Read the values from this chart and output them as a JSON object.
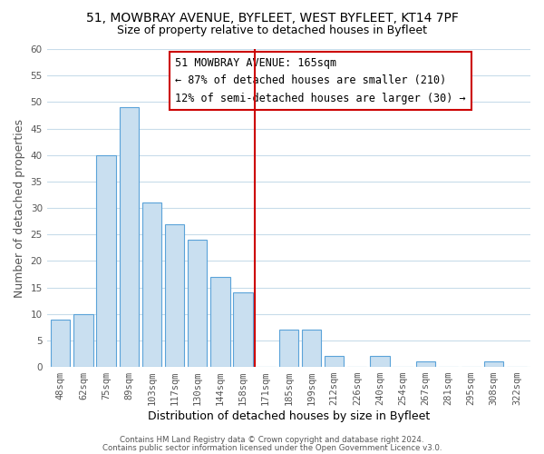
{
  "title": "51, MOWBRAY AVENUE, BYFLEET, WEST BYFLEET, KT14 7PF",
  "subtitle": "Size of property relative to detached houses in Byfleet",
  "xlabel": "Distribution of detached houses by size in Byfleet",
  "ylabel": "Number of detached properties",
  "bar_labels": [
    "48sqm",
    "62sqm",
    "75sqm",
    "89sqm",
    "103sqm",
    "117sqm",
    "130sqm",
    "144sqm",
    "158sqm",
    "171sqm",
    "185sqm",
    "199sqm",
    "212sqm",
    "226sqm",
    "240sqm",
    "254sqm",
    "267sqm",
    "281sqm",
    "295sqm",
    "308sqm",
    "322sqm"
  ],
  "bar_values": [
    9,
    10,
    40,
    49,
    31,
    27,
    24,
    17,
    14,
    0,
    7,
    7,
    2,
    0,
    2,
    0,
    1,
    0,
    0,
    1,
    0
  ],
  "bar_color": "#c9dff0",
  "bar_edge_color": "#5ba3d9",
  "vline_x": 8.5,
  "vline_color": "#cc0000",
  "ylim": [
    0,
    60
  ],
  "yticks": [
    0,
    5,
    10,
    15,
    20,
    25,
    30,
    35,
    40,
    45,
    50,
    55,
    60
  ],
  "annotation_title": "51 MOWBRAY AVENUE: 165sqm",
  "annotation_line1": "← 87% of detached houses are smaller (210)",
  "annotation_line2": "12% of semi-detached houses are larger (30) →",
  "annotation_box_color": "#ffffff",
  "annotation_box_edge": "#cc0000",
  "footer1": "Contains HM Land Registry data © Crown copyright and database right 2024.",
  "footer2": "Contains public sector information licensed under the Open Government Licence v3.0.",
  "title_fontsize": 10,
  "subtitle_fontsize": 9,
  "axis_label_fontsize": 9,
  "tick_fontsize": 7.5,
  "annotation_fontsize": 8.5
}
